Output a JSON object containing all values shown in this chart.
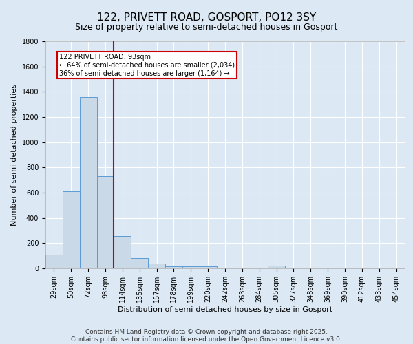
{
  "title": "122, PRIVETT ROAD, GOSPORT, PO12 3SY",
  "subtitle": "Size of property relative to semi-detached houses in Gosport",
  "xlabel": "Distribution of semi-detached houses by size in Gosport",
  "ylabel": "Number of semi-detached properties",
  "footer_line1": "Contains HM Land Registry data © Crown copyright and database right 2025.",
  "footer_line2": "Contains public sector information licensed under the Open Government Licence v3.0.",
  "categories": [
    "29sqm",
    "50sqm",
    "72sqm",
    "93sqm",
    "114sqm",
    "135sqm",
    "157sqm",
    "178sqm",
    "199sqm",
    "220sqm",
    "242sqm",
    "263sqm",
    "284sqm",
    "305sqm",
    "327sqm",
    "348sqm",
    "369sqm",
    "390sqm",
    "412sqm",
    "433sqm",
    "454sqm"
  ],
  "values": [
    110,
    610,
    1360,
    730,
    255,
    80,
    38,
    18,
    15,
    15,
    0,
    0,
    0,
    20,
    0,
    0,
    0,
    0,
    0,
    0,
    0
  ],
  "bar_color": "#c9d9e8",
  "bar_edge_color": "#5b9bd5",
  "red_line_index": 3,
  "annotation_title": "122 PRIVETT ROAD: 93sqm",
  "annotation_line2": "← 64% of semi-detached houses are smaller (2,034)",
  "annotation_line3": "36% of semi-detached houses are larger (1,164) →",
  "annotation_box_color": "#cc0000",
  "ylim": [
    0,
    1800
  ],
  "yticks": [
    0,
    200,
    400,
    600,
    800,
    1000,
    1200,
    1400,
    1600,
    1800
  ],
  "background_color": "#dce9f5",
  "grid_color": "#ffffff",
  "title_fontsize": 11,
  "subtitle_fontsize": 9,
  "axis_label_fontsize": 8,
  "tick_fontsize": 7,
  "footer_fontsize": 6.5,
  "annotation_fontsize": 7
}
